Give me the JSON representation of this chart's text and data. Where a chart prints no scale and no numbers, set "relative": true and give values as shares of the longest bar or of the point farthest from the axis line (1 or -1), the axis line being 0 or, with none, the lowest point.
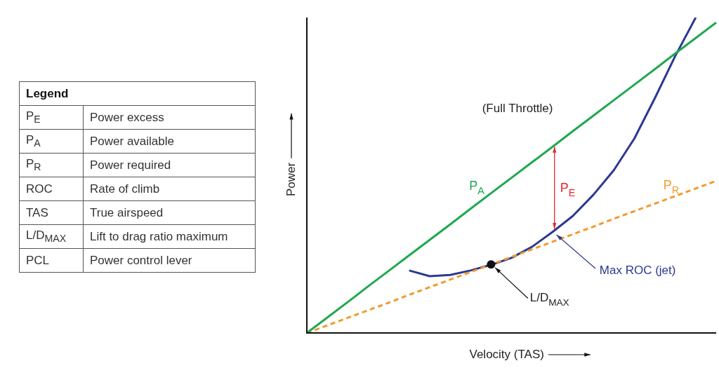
{
  "chart_data": {
    "type": "line",
    "relative": true,
    "xlabel": "Velocity (TAS)",
    "ylabel": "Power",
    "categories": [
      null,
      null,
      null,
      null,
      null,
      null,
      null,
      null,
      null,
      null,
      null,
      null,
      null,
      null,
      null,
      null,
      null,
      null,
      null,
      null,
      null
    ],
    "series": [
      {
        "name": "P$_{A}$",
        "color": "#1fa84f",
        "line_style": "solid",
        "values": [
          0,
          0.049,
          0.098,
          0.148,
          0.197,
          0.246,
          0.295,
          0.344,
          0.394,
          0.443,
          0.492,
          0.541,
          0.59,
          0.64,
          0.689,
          0.738,
          0.787,
          0.836,
          0.886,
          0.935,
          0.984
        ]
      },
      {
        "name": "P$_{R}$",
        "color": "#f39a2e",
        "line_style": "dashed",
        "values": [
          0,
          0.024,
          0.048,
          0.072,
          0.096,
          0.121,
          0.145,
          0.169,
          0.193,
          0.217,
          0.241,
          0.265,
          0.289,
          0.313,
          0.337,
          0.362,
          0.386,
          0.41,
          0.434,
          0.458,
          0.482
        ]
      },
      {
        "color": "#2b3990",
        "line_style": "solid",
        "values": [
          null,
          null,
          null,
          null,
          null,
          0.198,
          0.18,
          0.184,
          0.198,
          0.216,
          0.238,
          0.273,
          0.32,
          0.371,
          0.438,
          0.516,
          0.616,
          0.744,
          0.878,
          1,
          null
        ]
      }
    ],
    "legend": false,
    "annotations": [
      "Legend",
      "P$_{E}$",
      "Power excess",
      "P$_{A}$",
      "Power available",
      "P$_{R}$",
      "Power required",
      "ROC",
      "Rate of climb",
      "TAS",
      "True airspeed",
      "L/D$_{MAX}$",
      "Lift to drag ratio maximum",
      "PCL",
      "Power control lever",
      "(Full Throttle)",
      "P$_{E}$",
      "Max ROC (jet)",
      "L/D$_{MAX}$"
    ]
  }
}
